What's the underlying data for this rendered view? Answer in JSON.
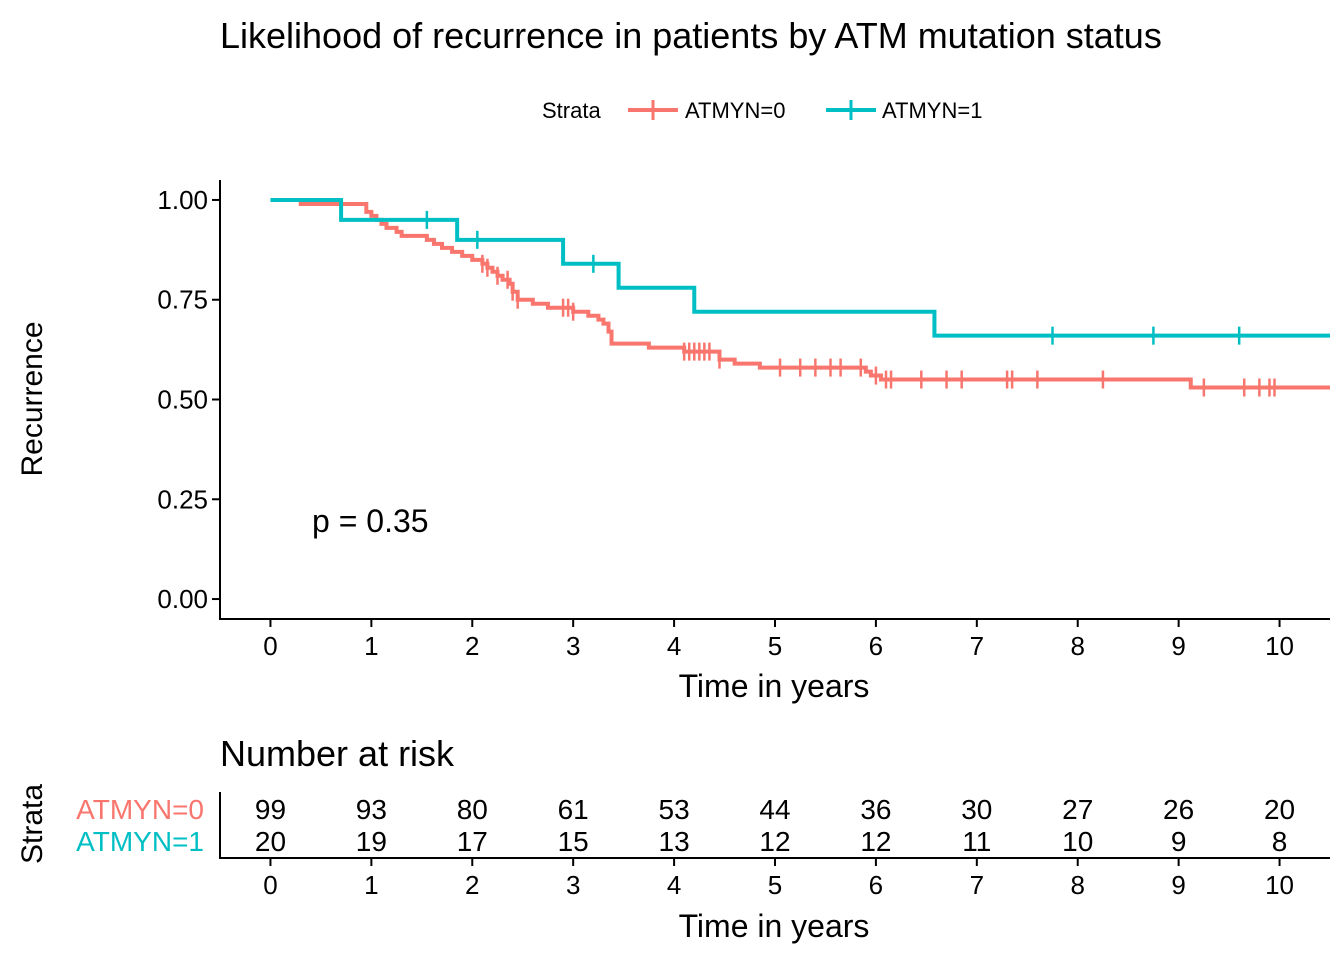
{
  "colors": {
    "atmyn0": "#F8766D",
    "atmyn1": "#00BFC4",
    "axis": "#000000"
  },
  "chart_data": [
    {
      "type": "line",
      "subtype": "kaplan-meier step",
      "title": "Likelihood of recurrence in patients by ATM mutation status",
      "xlabel": "Time in years",
      "ylabel": "Recurrence",
      "xlim": [
        -0.5,
        10.5
      ],
      "ylim": [
        -0.05,
        1.05
      ],
      "x_ticks": [
        0,
        1,
        2,
        3,
        4,
        5,
        6,
        7,
        8,
        9,
        10
      ],
      "y_ticks": [
        "0.00",
        "0.25",
        "0.50",
        "0.75",
        "1.00"
      ],
      "grid": false,
      "legend": {
        "title": "Strata",
        "placement": "top",
        "entries": [
          "ATMYN=0",
          "ATMYN=1"
        ]
      },
      "annotation": "p = 0.35",
      "series": [
        {
          "name": "ATMYN=0",
          "color": "#F8766D",
          "steps": [
            [
              0,
              1.0
            ],
            [
              0.3,
              0.99
            ],
            [
              0.95,
              0.97
            ],
            [
              1.0,
              0.96
            ],
            [
              1.05,
              0.95
            ],
            [
              1.1,
              0.94
            ],
            [
              1.15,
              0.93
            ],
            [
              1.25,
              0.92
            ],
            [
              1.3,
              0.91
            ],
            [
              1.55,
              0.9
            ],
            [
              1.62,
              0.89
            ],
            [
              1.7,
              0.88
            ],
            [
              1.8,
              0.87
            ],
            [
              1.9,
              0.86
            ],
            [
              2.0,
              0.85
            ],
            [
              2.1,
              0.84
            ],
            [
              2.15,
              0.83
            ],
            [
              2.2,
              0.82
            ],
            [
              2.25,
              0.81
            ],
            [
              2.3,
              0.8
            ],
            [
              2.37,
              0.79
            ],
            [
              2.4,
              0.77
            ],
            [
              2.45,
              0.75
            ],
            [
              2.6,
              0.74
            ],
            [
              2.75,
              0.73
            ],
            [
              3.0,
              0.72
            ],
            [
              3.15,
              0.71
            ],
            [
              3.25,
              0.7
            ],
            [
              3.3,
              0.69
            ],
            [
              3.35,
              0.67
            ],
            [
              3.38,
              0.64
            ],
            [
              3.75,
              0.63
            ],
            [
              4.1,
              0.62
            ],
            [
              4.45,
              0.6
            ],
            [
              4.6,
              0.59
            ],
            [
              4.85,
              0.58
            ],
            [
              5.9,
              0.57
            ],
            [
              5.95,
              0.56
            ],
            [
              6.05,
              0.55
            ],
            [
              9.12,
              0.53
            ],
            [
              10.5,
              0.53
            ]
          ],
          "censor_times": [
            2.1,
            2.15,
            2.25,
            2.35,
            2.4,
            2.45,
            2.9,
            2.95,
            3.0,
            4.1,
            4.15,
            4.2,
            4.25,
            4.3,
            4.35,
            4.45,
            5.05,
            5.25,
            5.4,
            5.55,
            5.65,
            5.85,
            6.0,
            6.1,
            6.15,
            6.45,
            6.7,
            6.85,
            7.3,
            7.35,
            7.6,
            8.25,
            9.25,
            9.65,
            9.8,
            9.9,
            9.95
          ]
        },
        {
          "name": "ATMYN=1",
          "color": "#00BFC4",
          "steps": [
            [
              0,
              1.0
            ],
            [
              0.7,
              0.95
            ],
            [
              1.85,
              0.9
            ],
            [
              2.9,
              0.84
            ],
            [
              3.45,
              0.78
            ],
            [
              4.2,
              0.72
            ],
            [
              6.58,
              0.66
            ],
            [
              10.5,
              0.66
            ]
          ],
          "censor_times": [
            1.55,
            2.05,
            3.2,
            7.75,
            8.75,
            9.6
          ]
        }
      ]
    },
    {
      "type": "table",
      "title": "Number at risk",
      "ylabel": "Strata",
      "xlabel": "Time in years",
      "x_ticks": [
        0,
        1,
        2,
        3,
        4,
        5,
        6,
        7,
        8,
        9,
        10
      ],
      "rows": [
        {
          "name": "ATMYN=0",
          "color": "#F8766D",
          "values": [
            99,
            93,
            80,
            61,
            53,
            44,
            36,
            30,
            27,
            26,
            20
          ]
        },
        {
          "name": "ATMYN=1",
          "color": "#00BFC4",
          "values": [
            20,
            19,
            17,
            15,
            13,
            12,
            12,
            11,
            10,
            9,
            8
          ]
        }
      ]
    }
  ]
}
